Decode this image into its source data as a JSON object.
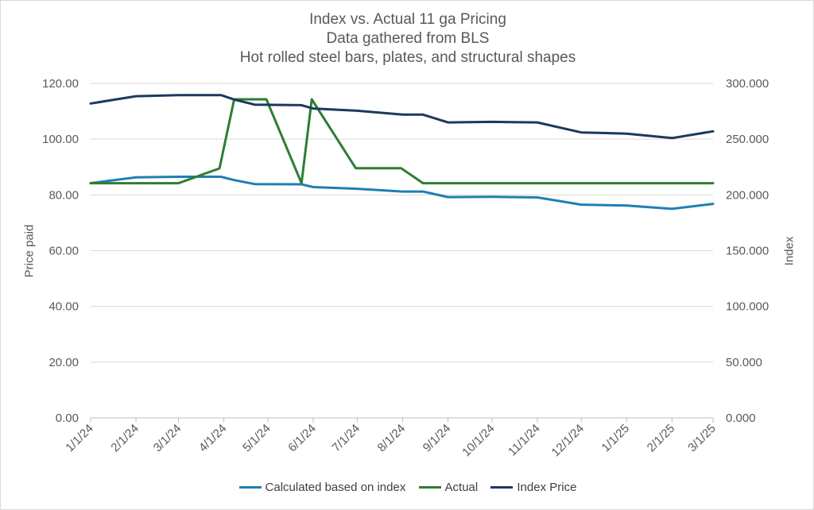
{
  "chart_data": {
    "type": "line",
    "title_lines": [
      "Index vs. Actual 11 ga Pricing",
      "Data gathered from BLS",
      "Hot rolled steel bars, plates, and structural shapes"
    ],
    "ylabel": "Price paid",
    "y2label": "Index",
    "categories": [
      "1/1/24",
      "2/1/24",
      "3/1/24",
      "4/1/24",
      "5/1/24",
      "6/1/24",
      "7/1/24",
      "8/1/24",
      "9/1/24",
      "10/1/24",
      "11/1/24",
      "12/1/24",
      "1/1/25",
      "2/1/25",
      "3/1/25"
    ],
    "x_dates": [
      "2024-01-01",
      "2024-02-01",
      "2024-03-01",
      "2024-04-01",
      "2024-05-01",
      "2024-06-01",
      "2024-07-01",
      "2024-08-01",
      "2024-09-01",
      "2024-10-01",
      "2024-11-01",
      "2024-12-01",
      "2025-01-01",
      "2025-02-01",
      "2025-03-01"
    ],
    "ylim": [
      0,
      120
    ],
    "y2lim": [
      0,
      300
    ],
    "yticks": [
      "0.00",
      "20.00",
      "40.00",
      "60.00",
      "80.00",
      "100.00",
      "120.00"
    ],
    "y2ticks": [
      "0.000",
      "50.000",
      "100.000",
      "150.000",
      "200.000",
      "250.000",
      "300.000"
    ],
    "grid": true,
    "legend_position": "bottom",
    "series": [
      {
        "name": "Calculated based on index",
        "axis": "left",
        "color": "#1f7fb4",
        "points": [
          {
            "x": "2024-01-01",
            "y": 84.2
          },
          {
            "x": "2024-02-01",
            "y": 86.3
          },
          {
            "x": "2024-03-01",
            "y": 86.5
          },
          {
            "x": "2024-03-30",
            "y": 86.5
          },
          {
            "x": "2024-04-08",
            "y": 85.3
          },
          {
            "x": "2024-04-22",
            "y": 83.9
          },
          {
            "x": "2024-05-24",
            "y": 83.8
          },
          {
            "x": "2024-06-01",
            "y": 82.8
          },
          {
            "x": "2024-07-01",
            "y": 82.2
          },
          {
            "x": "2024-08-01",
            "y": 81.2
          },
          {
            "x": "2024-08-15",
            "y": 81.2
          },
          {
            "x": "2024-09-01",
            "y": 79.2
          },
          {
            "x": "2024-10-01",
            "y": 79.3
          },
          {
            "x": "2024-11-01",
            "y": 79.1
          },
          {
            "x": "2024-12-01",
            "y": 76.5
          },
          {
            "x": "2025-01-01",
            "y": 76.2
          },
          {
            "x": "2025-02-01",
            "y": 75.0
          },
          {
            "x": "2025-03-01",
            "y": 76.8
          }
        ]
      },
      {
        "name": "Actual",
        "axis": "left",
        "color": "#2e7d32",
        "points": [
          {
            "x": "2024-01-01",
            "y": 84.2
          },
          {
            "x": "2024-03-01",
            "y": 84.2
          },
          {
            "x": "2024-03-29",
            "y": 89.5
          },
          {
            "x": "2024-04-08",
            "y": 114.3
          },
          {
            "x": "2024-04-30",
            "y": 114.3
          },
          {
            "x": "2024-05-24",
            "y": 84.2
          },
          {
            "x": "2024-05-31",
            "y": 114.3
          },
          {
            "x": "2024-06-30",
            "y": 89.6
          },
          {
            "x": "2024-07-31",
            "y": 89.6
          },
          {
            "x": "2024-08-15",
            "y": 84.2
          },
          {
            "x": "2025-03-01",
            "y": 84.2
          }
        ]
      },
      {
        "name": "Index Price",
        "axis": "right",
        "color": "#1b3a5c",
        "points": [
          {
            "x": "2024-01-01",
            "y": 282.0
          },
          {
            "x": "2024-02-01",
            "y": 288.5
          },
          {
            "x": "2024-03-01",
            "y": 289.5
          },
          {
            "x": "2024-03-30",
            "y": 289.5
          },
          {
            "x": "2024-04-08",
            "y": 285.5
          },
          {
            "x": "2024-04-22",
            "y": 281.0
          },
          {
            "x": "2024-05-24",
            "y": 280.5
          },
          {
            "x": "2024-06-01",
            "y": 277.5
          },
          {
            "x": "2024-07-01",
            "y": 275.5
          },
          {
            "x": "2024-08-01",
            "y": 272.0
          },
          {
            "x": "2024-08-15",
            "y": 272.0
          },
          {
            "x": "2024-09-01",
            "y": 265.0
          },
          {
            "x": "2024-10-01",
            "y": 265.5
          },
          {
            "x": "2024-11-01",
            "y": 265.0
          },
          {
            "x": "2024-12-01",
            "y": 256.0
          },
          {
            "x": "2025-01-01",
            "y": 255.0
          },
          {
            "x": "2025-02-01",
            "y": 251.0
          },
          {
            "x": "2025-03-01",
            "y": 257.0
          }
        ]
      }
    ]
  }
}
